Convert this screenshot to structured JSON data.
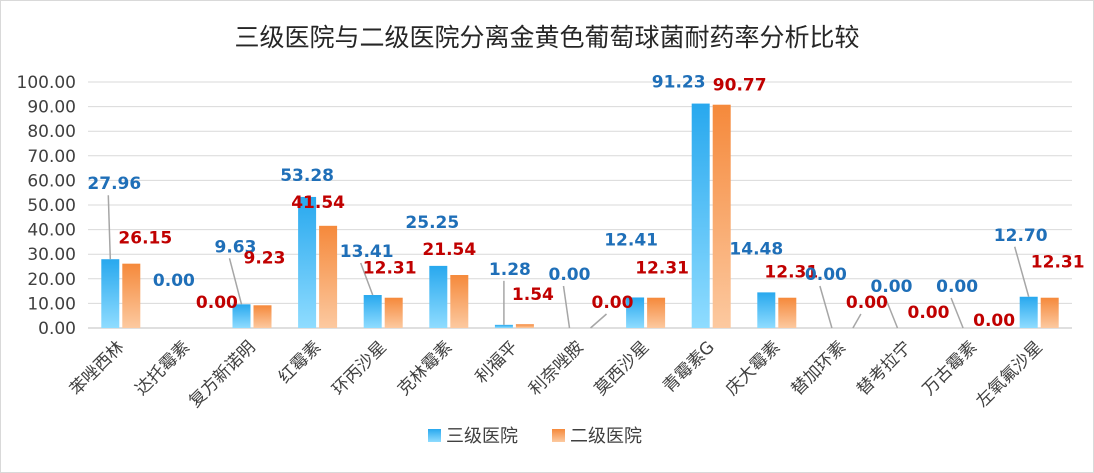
{
  "chart_data": {
    "type": "bar",
    "title": "三级医院与二级医院分离金黄色葡萄球菌耐药率分析比较",
    "xlabel": "",
    "ylabel": "",
    "ylim": [
      0,
      100
    ],
    "yticks": [
      "0.00",
      "10.00",
      "20.00",
      "30.00",
      "40.00",
      "50.00",
      "60.00",
      "70.00",
      "80.00",
      "90.00",
      "100.00"
    ],
    "categories": [
      "苯唑西林",
      "达托霉素",
      "复方新诺明",
      "红霉素",
      "环丙沙星",
      "克林霉素",
      "利福平",
      "利奈唑胺",
      "莫西沙星",
      "青霉素G",
      "庆大霉素",
      "替加环素",
      "替考拉宁",
      "万古霉素",
      "左氧氟沙星"
    ],
    "series": [
      {
        "name": "三级医院",
        "color": "#3fb8f2",
        "values": [
          27.96,
          0.0,
          9.63,
          53.28,
          13.41,
          25.25,
          1.28,
          0.0,
          12.41,
          91.23,
          14.48,
          0.0,
          0.0,
          0.0,
          12.7
        ],
        "labels": [
          "27.96",
          "0.00",
          "9.63",
          "53.28",
          "13.41",
          "25.25",
          "1.28",
          "0.00",
          "12.41",
          "91.23",
          "14.48",
          "0.00",
          "0.00",
          "0.00",
          "12.70"
        ]
      },
      {
        "name": "二级医院",
        "color": "#f79a55",
        "values": [
          26.15,
          0.0,
          9.23,
          41.54,
          12.31,
          21.54,
          1.54,
          0.0,
          12.31,
          90.77,
          12.31,
          0.0,
          0.0,
          0.0,
          12.31
        ],
        "labels": [
          "26.15",
          "0.00",
          "9.23",
          "41.54",
          "12.31",
          "21.54",
          "1.54",
          "0.00",
          "12.31",
          "90.77",
          "12.31",
          "0.00",
          "0.00",
          "0.00",
          "12.31"
        ]
      }
    ],
    "label_colors": [
      "#1f6fb8",
      "#c00000"
    ],
    "grid": true,
    "legend": "bottom"
  }
}
